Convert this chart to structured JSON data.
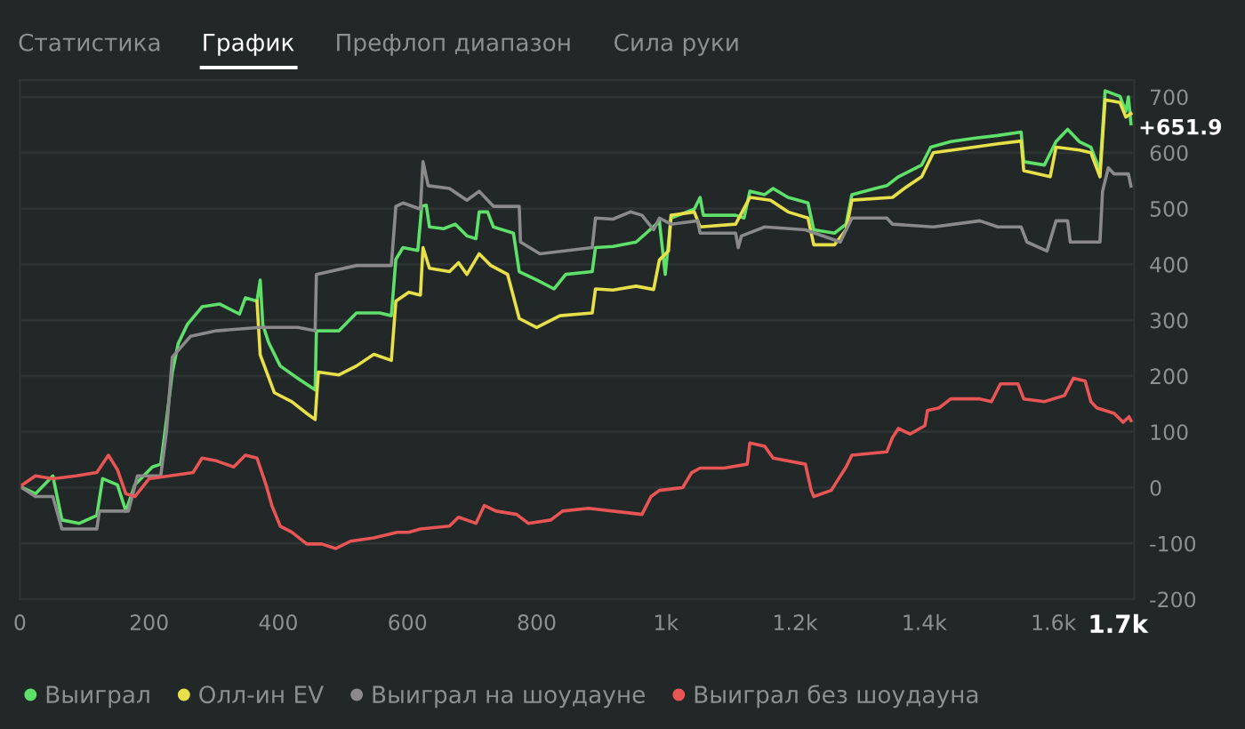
{
  "chart_data": {
    "type": "line",
    "annotations": [
      "Статистика",
      "График",
      "Префлоп диапазон",
      "Сила руки",
      {
        "text": "+651.9",
        "x": 1720,
        "y": 651.9
      }
    ],
    "xlim": [
      0,
      1725
    ],
    "ylim": [
      -200,
      730
    ],
    "xticks": [
      0,
      200,
      400,
      600,
      800,
      {
        "value": 1000,
        "label": "1k"
      },
      {
        "value": 1200,
        "label": "1.2k"
      },
      {
        "value": 1400,
        "label": "1.4k"
      },
      {
        "value": 1600,
        "label": "1.6k"
      },
      {
        "value": 1700,
        "label": "1.7k"
      }
    ],
    "yticks": [
      -200,
      -100,
      0,
      100,
      200,
      300,
      400,
      500,
      600,
      700
    ],
    "grid": "y",
    "legend": "bottom",
    "marker": "none",
    "line_style": "solid",
    "series": [
      {
        "name": "Выиграл",
        "color": "#5ee06a",
        "x": [
          0,
          24,
          51,
          65,
          92,
          119,
          128,
          151,
          164,
          178,
          205,
          218,
          227,
          236,
          245,
          259,
          282,
          309,
          340,
          349,
          367,
          372,
          376,
          385,
          403,
          430,
          457,
          459,
          494,
          521,
          557,
          575,
          582,
          593,
          616,
          622,
          629,
          634,
          656,
          674,
          692,
          706,
          711,
          724,
          733,
          764,
          773,
          800,
          827,
          845,
          886,
          891,
          918,
          954,
          990,
          999,
          1008,
          1044,
          1053,
          1058,
          1108,
          1121,
          1130,
          1153,
          1166,
          1189,
          1220,
          1229,
          1261,
          1279,
          1288,
          1324,
          1342,
          1360,
          1396,
          1410,
          1441,
          1477,
          1514,
          1550,
          1554,
          1586,
          1604,
          1622,
          1640,
          1658,
          1672,
          1680,
          1703,
          1712,
          1716,
          1720
        ],
        "values": [
          2,
          -11,
          21,
          -58,
          -64,
          -50,
          16,
          5,
          -42,
          5,
          37,
          42,
          122,
          207,
          258,
          292,
          324,
          329,
          311,
          340,
          334,
          372,
          292,
          260,
          218,
          196,
          175,
          281,
          281,
          313,
          313,
          308,
          409,
          430,
          425,
          504,
          506,
          467,
          464,
          472,
          451,
          446,
          494,
          494,
          467,
          456,
          387,
          372,
          356,
          382,
          387,
          430,
          432,
          440,
          477,
          382,
          483,
          499,
          520,
          488,
          488,
          483,
          531,
          525,
          536,
          520,
          510,
          462,
          456,
          472,
          525,
          536,
          541,
          557,
          578,
          610,
          620,
          626,
          631,
          637,
          584,
          578,
          620,
          642,
          620,
          610,
          568,
          711,
          701,
          674,
          700,
          651.9
        ]
      },
      {
        "name": "Олл-ин EV",
        "color": "#e8e04a",
        "x": [
          367,
          372,
          394,
          421,
          444,
          457,
          462,
          494,
          521,
          548,
          575,
          582,
          602,
          620,
          624,
          634,
          665,
          679,
          692,
          711,
          729,
          755,
          773,
          800,
          836,
          886,
          891,
          918,
          954,
          981,
          990,
          1004,
          1008,
          1044,
          1053,
          1108,
          1130,
          1162,
          1189,
          1220,
          1229,
          1261,
          1279,
          1288,
          1351,
          1369,
          1396,
          1414,
          1477,
          1514,
          1550,
          1554,
          1595,
          1604,
          1640,
          1658,
          1672,
          1680,
          1703,
          1712,
          1720
        ],
        "values": [
          334,
          238,
          170,
          154,
          133,
          122,
          207,
          202,
          218,
          239,
          228,
          334,
          350,
          345,
          430,
          393,
          387,
          403,
          382,
          419,
          398,
          382,
          303,
          287,
          308,
          313,
          356,
          354,
          361,
          355,
          408,
          424,
          488,
          494,
          467,
          472,
          520,
          515,
          494,
          483,
          435,
          435,
          462,
          515,
          520,
          536,
          557,
          600,
          610,
          616,
          621,
          568,
          557,
          610,
          605,
          600,
          557,
          695,
          690,
          664,
          670
        ]
      },
      {
        "name": "Выиграл на шоудауне",
        "color": "#8a8a8a",
        "x": [
          0,
          24,
          51,
          65,
          119,
          123,
          168,
          182,
          218,
          227,
          236,
          264,
          304,
          372,
          430,
          457,
          459,
          521,
          575,
          582,
          593,
          620,
          624,
          632,
          665,
          692,
          711,
          733,
          773,
          775,
          805,
          886,
          891,
          918,
          945,
          963,
          981,
          990,
          1008,
          1049,
          1053,
          1108,
          1112,
          1117,
          1153,
          1216,
          1270,
          1288,
          1342,
          1351,
          1414,
          1486,
          1514,
          1550,
          1559,
          1590,
          1604,
          1622,
          1626,
          1672,
          1676,
          1685,
          1694,
          1716,
          1720
        ],
        "values": [
          2,
          -16,
          -16,
          -74,
          -74,
          -42,
          -42,
          21,
          21,
          101,
          234,
          271,
          281,
          287,
          287,
          281,
          382,
          398,
          398,
          504,
          510,
          499,
          584,
          541,
          536,
          515,
          531,
          504,
          504,
          440,
          419,
          430,
          483,
          481,
          494,
          488,
          462,
          483,
          472,
          478,
          456,
          456,
          430,
          451,
          467,
          462,
          440,
          483,
          483,
          472,
          467,
          478,
          467,
          467,
          440,
          424,
          478,
          478,
          440,
          440,
          531,
          573,
          562,
          562,
          540
        ]
      },
      {
        "name": "Выиграл без шоудауна",
        "color": "#e85555",
        "x": [
          0,
          24,
          51,
          87,
          119,
          137,
          151,
          164,
          178,
          200,
          232,
          268,
          282,
          304,
          331,
          349,
          367,
          381,
          390,
          403,
          421,
          444,
          467,
          489,
          512,
          548,
          584,
          602,
          620,
          665,
          679,
          706,
          719,
          737,
          769,
          787,
          822,
          840,
          880,
          918,
          963,
          977,
          990,
          1026,
          1040,
          1053,
          1090,
          1126,
          1130,
          1153,
          1166,
          1216,
          1225,
          1229,
          1256,
          1279,
          1288,
          1342,
          1351,
          1360,
          1378,
          1401,
          1405,
          1423,
          1441,
          1486,
          1504,
          1518,
          1545,
          1554,
          1586,
          1617,
          1631,
          1649,
          1658,
          1667,
          1694,
          1708,
          1717,
          1720
        ],
        "values": [
          2,
          21,
          16,
          21,
          27,
          58,
          32,
          -11,
          -16,
          16,
          21,
          27,
          53,
          48,
          37,
          58,
          53,
          5,
          -32,
          -69,
          -80,
          -101,
          -101,
          -109,
          -96,
          -90,
          -80,
          -80,
          -74,
          -69,
          -53,
          -64,
          -32,
          -42,
          -48,
          -64,
          -58,
          -42,
          -37,
          -42,
          -48,
          -16,
          -5,
          0,
          27,
          35,
          35,
          42,
          80,
          74,
          53,
          42,
          -5,
          -16,
          -5,
          37,
          58,
          64,
          90,
          106,
          96,
          111,
          138,
          143,
          159,
          159,
          154,
          186,
          186,
          159,
          154,
          165,
          196,
          191,
          154,
          143,
          133,
          117,
          127,
          120
        ]
      }
    ]
  }
}
